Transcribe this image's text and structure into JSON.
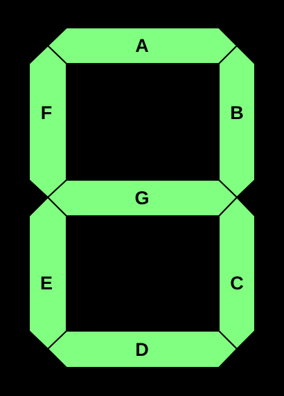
{
  "colors": {
    "background": "#000000",
    "segment": "#80FF80",
    "outline": "#000000",
    "label": "#000000"
  },
  "segments": {
    "a": {
      "label": "A"
    },
    "b": {
      "label": "B"
    },
    "c": {
      "label": "C"
    },
    "d": {
      "label": "D"
    },
    "e": {
      "label": "E"
    },
    "f": {
      "label": "F"
    },
    "g": {
      "label": "G"
    }
  }
}
